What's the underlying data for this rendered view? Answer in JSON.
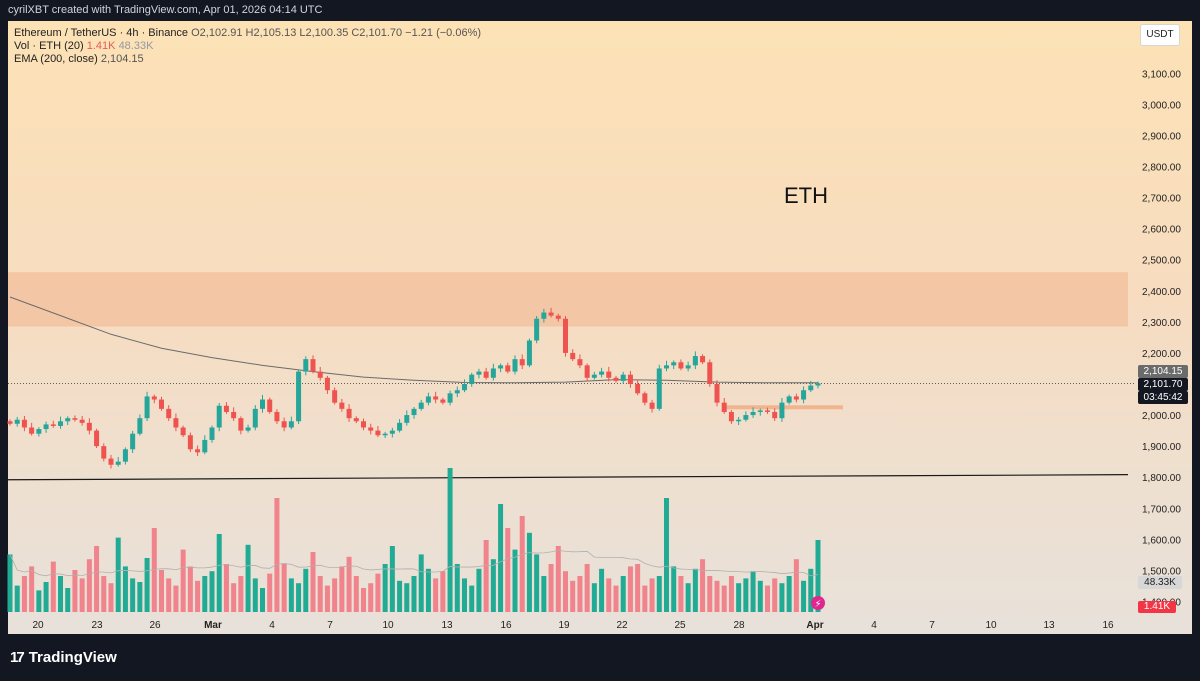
{
  "header": {
    "attribution": "cyrilXBT created with TradingView.com, Apr 01, 2026 04:14 UTC"
  },
  "legend": {
    "symbol": "Ethereum / TetherUS · 4h · Binance",
    "ohlc": "O2,102.91  H2,105.13  L2,100.35  C2,101.70  −1.21 (−0.06%)",
    "vol_label": "Vol · ETH (20)",
    "vol_value": "1.41K",
    "vol_ma": "48.33K",
    "ema_label": "EMA (200, close)",
    "ema_value": "2,104.15"
  },
  "currency_button": "USDT",
  "annotation_text": "ETH",
  "price_tags": {
    "ema": "2,104.15",
    "last": "2,101.70",
    "countdown": "03:45:42",
    "vol_ma": "48.33K",
    "vol": "1.41K"
  },
  "footer": {
    "brand": "TradingView",
    "brand_mark": "17"
  },
  "colors": {
    "up": "#26a69a",
    "down": "#ef5350",
    "vol_up": "#22ab94",
    "vol_down": "#f0838b",
    "ema": "#6b6b6b",
    "zone": "#f0b48e",
    "support": "#1a1a1a"
  },
  "chart_data": {
    "type": "candlestick",
    "symbol": "ETHUSDT",
    "interval": "4h",
    "y_ticks": [
      "3,100.00",
      "3,000.00",
      "2,900.00",
      "2,800.00",
      "2,700.00",
      "2,600.00",
      "2,500.00",
      "2,400.00",
      "2,300.00",
      "2,200.00",
      "2,000.00",
      "1,900.00",
      "1,800.00",
      "1,700.00",
      "1,600.00",
      "1,500.00",
      "1,400.00"
    ],
    "ylim": [
      1358,
      3150
    ],
    "x_ticks": [
      "20",
      "23",
      "26",
      "Mar",
      "4",
      "7",
      "10",
      "13",
      "16",
      "19",
      "22",
      "25",
      "28",
      "Apr",
      "4",
      "7",
      "10",
      "13",
      "16"
    ],
    "resistance_zone": [
      2285,
      2460
    ],
    "support_line": [
      1795,
      1805
    ],
    "small_zone": 2025,
    "last_price": 2101.7,
    "ema_value": 2104.15,
    "ema_path": [
      [
        0,
        2380
      ],
      [
        8,
        2320
      ],
      [
        16,
        2260
      ],
      [
        24,
        2215
      ],
      [
        32,
        2185
      ],
      [
        40,
        2160
      ],
      [
        48,
        2140
      ],
      [
        56,
        2122
      ],
      [
        64,
        2112
      ],
      [
        72,
        2105
      ],
      [
        80,
        2104
      ],
      [
        88,
        2106
      ],
      [
        96,
        2114
      ],
      [
        104,
        2112
      ],
      [
        112,
        2106
      ],
      [
        120,
        2104
      ],
      [
        128,
        2104
      ]
    ],
    "closes": [
      1972,
      1985,
      1960,
      1940,
      1955,
      1970,
      1965,
      1980,
      1990,
      1985,
      1975,
      1950,
      1900,
      1860,
      1840,
      1850,
      1890,
      1940,
      1990,
      2060,
      2050,
      2020,
      1990,
      1960,
      1935,
      1890,
      1880,
      1920,
      1960,
      2030,
      2010,
      1990,
      1950,
      1960,
      2020,
      2050,
      2010,
      1980,
      1960,
      1980,
      2140,
      2180,
      2140,
      2120,
      2080,
      2040,
      2020,
      1990,
      1980,
      1960,
      1950,
      1935,
      1940,
      1950,
      1975,
      2000,
      2020,
      2040,
      2060,
      2050,
      2040,
      2070,
      2080,
      2100,
      2130,
      2140,
      2120,
      2150,
      2160,
      2140,
      2180,
      2160,
      2240,
      2310,
      2330,
      2320,
      2310,
      2200,
      2180,
      2160,
      2120,
      2130,
      2140,
      2120,
      2110,
      2130,
      2100,
      2070,
      2040,
      2020,
      2150,
      2160,
      2170,
      2150,
      2160,
      2190,
      2170,
      2100,
      2040,
      2010,
      1980,
      1985,
      2000,
      2010,
      2015,
      2010,
      1990,
      2040,
      2060,
      2050,
      2080,
      2095,
      2102
    ],
    "volume": [
      48,
      22,
      30,
      38,
      18,
      25,
      42,
      30,
      20,
      35,
      28,
      44,
      55,
      30,
      24,
      62,
      38,
      28,
      25,
      45,
      70,
      35,
      28,
      22,
      52,
      38,
      26,
      30,
      34,
      65,
      40,
      24,
      30,
      56,
      28,
      20,
      32,
      95,
      40,
      28,
      24,
      36,
      50,
      30,
      22,
      28,
      38,
      46,
      30,
      20,
      24,
      32,
      40,
      55,
      26,
      24,
      30,
      48,
      36,
      28,
      34,
      120,
      40,
      28,
      22,
      36,
      60,
      44,
      90,
      70,
      52,
      80,
      66,
      48,
      30,
      40,
      55,
      34,
      26,
      30,
      40,
      24,
      36,
      28,
      22,
      30,
      38,
      40,
      22,
      28,
      30,
      95,
      38,
      30,
      24,
      36,
      44,
      30,
      26,
      22,
      30,
      24,
      28,
      34,
      26,
      22,
      28,
      24,
      30,
      44,
      26,
      36,
      60
    ]
  }
}
